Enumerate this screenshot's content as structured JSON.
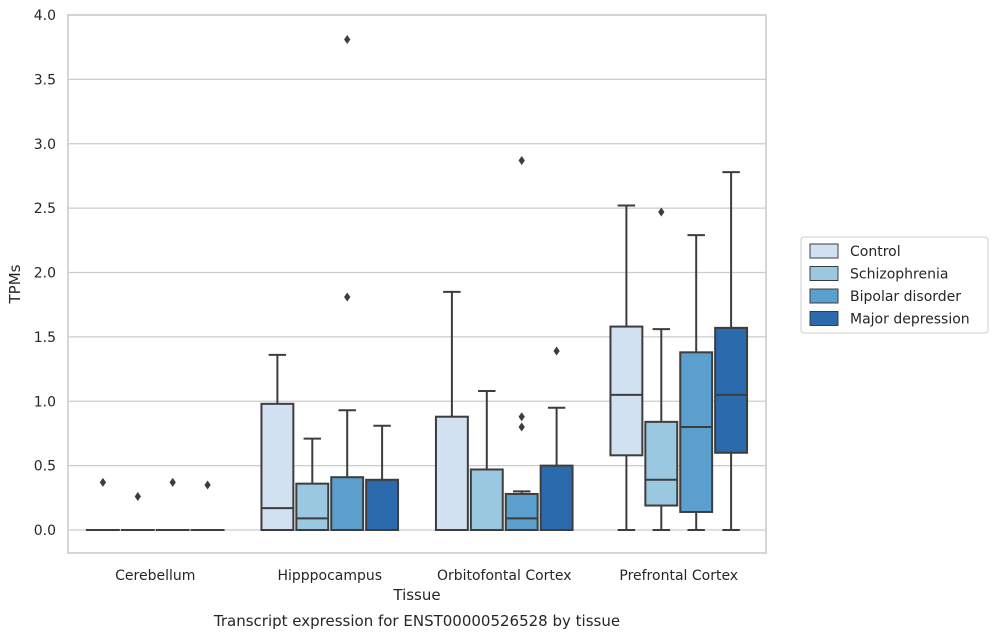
{
  "chart_data": {
    "type": "box",
    "xlabel": "Tissue",
    "ylabel": "TPMs",
    "caption": "Transcript expression for ENST00000526528 by tissue",
    "ylim": [
      -0.18,
      4.0
    ],
    "yticks": [
      "0.0",
      "0.5",
      "1.0",
      "1.5",
      "2.0",
      "2.5",
      "3.0",
      "3.5",
      "4.0"
    ],
    "grid": "horizontal",
    "legend_position": "right",
    "categories": [
      "Cerebellum",
      "Hipppocampus",
      "Orbitofontal Cortex",
      "Prefrontal Cortex"
    ],
    "series": [
      {
        "name": "Control",
        "color": "#d1e1f1",
        "boxes": [
          {
            "q1": 0.0,
            "median": 0.0,
            "q3": 0.0,
            "whisker_low": 0.0,
            "whisker_high": 0.0,
            "outliers": [
              0.37
            ]
          },
          {
            "q1": 0.0,
            "median": 0.17,
            "q3": 0.98,
            "whisker_low": 0.0,
            "whisker_high": 1.36,
            "outliers": []
          },
          {
            "q1": 0.0,
            "median": 0.0,
            "q3": 0.88,
            "whisker_low": 0.0,
            "whisker_high": 1.85,
            "outliers": []
          },
          {
            "q1": 0.58,
            "median": 1.05,
            "q3": 1.58,
            "whisker_low": 0.0,
            "whisker_high": 2.52,
            "outliers": []
          }
        ]
      },
      {
        "name": "Schizophrenia",
        "color": "#9ac8e0",
        "boxes": [
          {
            "q1": 0.0,
            "median": 0.0,
            "q3": 0.0,
            "whisker_low": 0.0,
            "whisker_high": 0.0,
            "outliers": [
              0.26
            ]
          },
          {
            "q1": 0.0,
            "median": 0.09,
            "q3": 0.36,
            "whisker_low": 0.0,
            "whisker_high": 0.71,
            "outliers": []
          },
          {
            "q1": 0.0,
            "median": 0.0,
            "q3": 0.47,
            "whisker_low": 0.0,
            "whisker_high": 1.08,
            "outliers": []
          },
          {
            "q1": 0.19,
            "median": 0.39,
            "q3": 0.84,
            "whisker_low": 0.0,
            "whisker_high": 1.56,
            "outliers": [
              2.47
            ]
          }
        ]
      },
      {
        "name": "Bipolar disorder",
        "color": "#5a9fcd",
        "boxes": [
          {
            "q1": 0.0,
            "median": 0.0,
            "q3": 0.0,
            "whisker_low": 0.0,
            "whisker_high": 0.0,
            "outliers": [
              0.37
            ]
          },
          {
            "q1": 0.0,
            "median": 0.0,
            "q3": 0.41,
            "whisker_low": 0.0,
            "whisker_high": 0.93,
            "outliers": [
              1.81,
              3.81
            ]
          },
          {
            "q1": 0.0,
            "median": 0.09,
            "q3": 0.28,
            "whisker_low": 0.0,
            "whisker_high": 0.3,
            "outliers": [
              0.8,
              0.88,
              2.87
            ]
          },
          {
            "q1": 0.14,
            "median": 0.8,
            "q3": 1.38,
            "whisker_low": 0.0,
            "whisker_high": 2.29,
            "outliers": []
          }
        ]
      },
      {
        "name": "Major depression",
        "color": "#2a6aad",
        "boxes": [
          {
            "q1": 0.0,
            "median": 0.0,
            "q3": 0.0,
            "whisker_low": 0.0,
            "whisker_high": 0.0,
            "outliers": [
              0.35
            ]
          },
          {
            "q1": 0.0,
            "median": 0.0,
            "q3": 0.39,
            "whisker_low": 0.0,
            "whisker_high": 0.81,
            "outliers": []
          },
          {
            "q1": 0.0,
            "median": 0.0,
            "q3": 0.5,
            "whisker_low": 0.0,
            "whisker_high": 0.95,
            "outliers": [
              1.39
            ]
          },
          {
            "q1": 0.6,
            "median": 1.05,
            "q3": 1.57,
            "whisker_low": 0.0,
            "whisker_high": 2.78,
            "outliers": []
          }
        ]
      }
    ]
  }
}
